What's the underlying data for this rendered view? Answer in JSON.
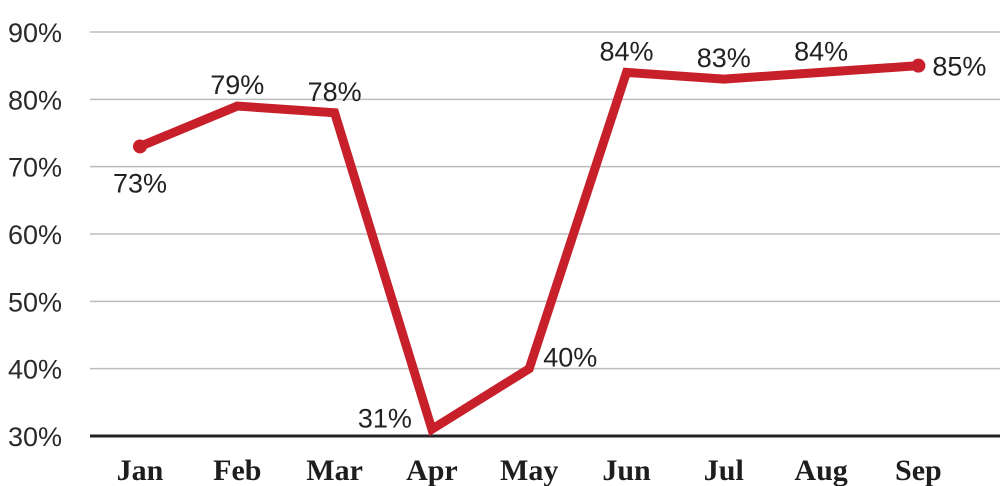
{
  "chart_data": {
    "type": "line",
    "title": "",
    "xlabel": "",
    "ylabel": "",
    "categories": [
      "Jan",
      "Feb",
      "Mar",
      "Apr",
      "May",
      "Jun",
      "Jul",
      "Aug",
      "Sep"
    ],
    "series": [
      {
        "values": [
          73,
          79,
          78,
          31,
          40,
          84,
          83,
          84,
          85
        ]
      }
    ],
    "data_labels": [
      "73%",
      "79%",
      "78%",
      "31%",
      "40%",
      "84%",
      "83%",
      "84%",
      "85%"
    ],
    "ylim": [
      30,
      90
    ],
    "yticks": [
      30,
      40,
      50,
      60,
      70,
      80,
      90
    ],
    "ytick_labels": [
      "30%",
      "40%",
      "50%",
      "60%",
      "70%",
      "80%",
      "90%"
    ],
    "grid": true,
    "line_color": "#c8202b"
  }
}
